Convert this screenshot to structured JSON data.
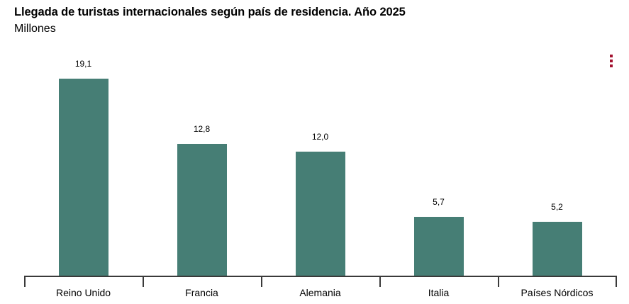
{
  "header": {
    "title": "Llegada de turistas internacionales según país de residencia. Año 2025",
    "subtitle": "Millones"
  },
  "menu": {
    "icon": "vertical-ellipsis-icon",
    "color": "#a3122f"
  },
  "chart_data": {
    "type": "bar",
    "title": "Llegada de turistas internacionales según país de residencia. Año 2025",
    "subtitle": "Millones",
    "xlabel": "",
    "ylabel": "Millones",
    "categories": [
      "Reino Unido",
      "Francia",
      "Alemania",
      "Italia",
      "Países Nórdicos"
    ],
    "values": [
      19.1,
      12.8,
      12.0,
      5.7,
      5.2
    ],
    "labels": [
      "19,1",
      "12,8",
      "12,0",
      "5,7",
      "5,2"
    ],
    "ylim": [
      0,
      20
    ],
    "grid": false,
    "legend": null,
    "bar_color": "#467e75"
  }
}
